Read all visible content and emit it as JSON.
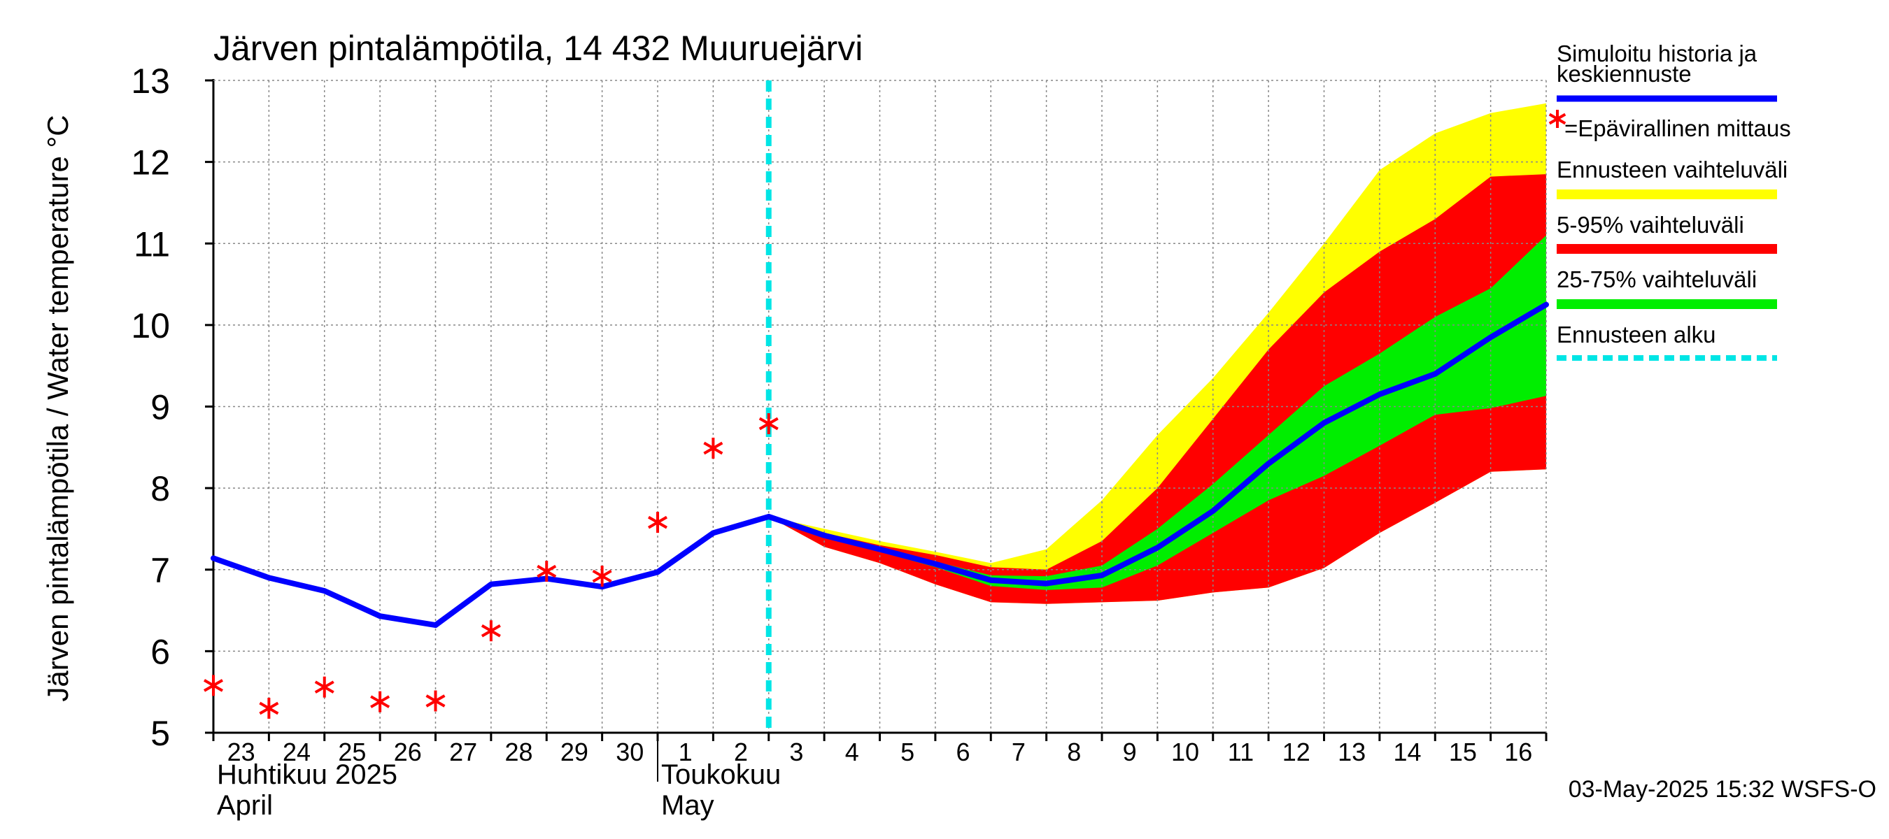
{
  "chart_data": {
    "type": "line",
    "title": "Järven pintalämpötila, 14 432 Muuruejärvi",
    "ylabel": "Järven pintalämpötila / Water temperature °C",
    "ylim": [
      5,
      13
    ],
    "y_ticks": [
      5,
      6,
      7,
      8,
      9,
      10,
      11,
      12,
      13
    ],
    "x_range": [
      "2025-04-23",
      "2025-05-17"
    ],
    "x_tick_labels": [
      "23",
      "24",
      "25",
      "26",
      "27",
      "28",
      "29",
      "30",
      "1",
      "2",
      "3",
      "4",
      "5",
      "6",
      "7",
      "8",
      "9",
      "10",
      "11",
      "12",
      "13",
      "14",
      "15",
      "16"
    ],
    "month_labels": [
      {
        "month": "Huhtikuu  2025",
        "english": "April",
        "start": "2025-04-23"
      },
      {
        "month": "Toukokuu",
        "english": "May",
        "start": "2025-05-01"
      }
    ],
    "grid": true,
    "forecast_start": "2025-05-03",
    "timestamp": "03-May-2025 15:32 WSFS-O",
    "colors": {
      "mean": "#0000ff",
      "obs": "#ff0000",
      "range_full": "#ffff00",
      "range_5_95": "#ff0000",
      "range_25_75": "#00ee00",
      "forecast_start": "#00e5e5"
    },
    "legend": {
      "placement": "right",
      "items": [
        {
          "label": "Simuloitu historia ja keskiennuste",
          "kind": "line",
          "color": "#0000ff"
        },
        {
          "label": "=Epävirallinen mittaus",
          "kind": "star",
          "color": "#ff0000"
        },
        {
          "label": "Ennusteen vaihteluväli",
          "kind": "band",
          "color": "#ffff00"
        },
        {
          "label": "5-95% vaihteluväli",
          "kind": "band",
          "color": "#ff0000"
        },
        {
          "label": "25-75% vaihteluväli",
          "kind": "band",
          "color": "#00ee00"
        },
        {
          "label": "Ennusteen alku",
          "kind": "dashed",
          "color": "#00e5e5"
        }
      ]
    },
    "series": [
      {
        "name": "Simuloitu historia ja keskiennuste",
        "x": [
          "2025-04-23",
          "2025-04-24",
          "2025-04-25",
          "2025-04-26",
          "2025-04-27",
          "2025-04-28",
          "2025-04-29",
          "2025-04-30",
          "2025-05-01",
          "2025-05-02",
          "2025-05-03",
          "2025-05-04",
          "2025-05-05",
          "2025-05-06",
          "2025-05-07",
          "2025-05-08",
          "2025-05-09",
          "2025-05-10",
          "2025-05-11",
          "2025-05-12",
          "2025-05-13",
          "2025-05-14",
          "2025-05-15",
          "2025-05-16",
          "2025-05-17"
        ],
        "y": [
          7.14,
          6.9,
          6.74,
          6.43,
          6.32,
          6.82,
          6.89,
          6.79,
          6.97,
          7.45,
          7.65,
          7.42,
          7.25,
          7.07,
          6.87,
          6.83,
          6.93,
          7.27,
          7.72,
          8.3,
          8.8,
          9.15,
          9.4,
          9.85,
          10.25
        ]
      },
      {
        "name": "=Epävirallinen mittaus",
        "x": [
          "2025-04-23",
          "2025-04-24",
          "2025-04-25",
          "2025-04-26",
          "2025-04-27",
          "2025-04-28",
          "2025-04-29",
          "2025-04-30",
          "2025-05-01",
          "2025-05-02",
          "2025-05-03"
        ],
        "y": [
          5.58,
          5.3,
          5.56,
          5.38,
          5.39,
          6.25,
          6.98,
          6.92,
          7.58,
          8.49,
          8.79
        ]
      }
    ],
    "bands": {
      "x": [
        "2025-05-03",
        "2025-05-04",
        "2025-05-05",
        "2025-05-06",
        "2025-05-07",
        "2025-05-08",
        "2025-05-09",
        "2025-05-10",
        "2025-05-11",
        "2025-05-12",
        "2025-05-13",
        "2025-05-14",
        "2025-05-15",
        "2025-05-16",
        "2025-05-17"
      ],
      "full": {
        "upper": [
          7.65,
          7.5,
          7.35,
          7.22,
          7.08,
          7.25,
          7.85,
          8.65,
          9.35,
          10.15,
          11.0,
          11.9,
          12.35,
          12.6,
          12.72
        ],
        "lower": [
          7.65,
          7.28,
          7.08,
          6.82,
          6.6,
          6.58,
          6.6,
          6.62,
          6.72,
          6.78,
          7.02,
          7.45,
          7.82,
          8.2,
          8.23
        ]
      },
      "p5_95": {
        "upper": [
          7.65,
          7.45,
          7.3,
          7.18,
          7.03,
          7.0,
          7.35,
          8.0,
          8.85,
          9.7,
          10.4,
          10.9,
          11.3,
          11.82,
          11.85
        ]
      },
      "p25_75": {
        "upper": [
          7.65,
          7.43,
          7.27,
          7.1,
          6.93,
          6.92,
          7.05,
          7.5,
          8.05,
          8.65,
          9.25,
          9.65,
          10.1,
          10.45,
          11.1
        ],
        "lower": [
          7.65,
          7.4,
          7.22,
          7.03,
          6.8,
          6.75,
          6.78,
          7.05,
          7.45,
          7.85,
          8.15,
          8.52,
          8.9,
          8.98,
          9.13
        ]
      }
    }
  }
}
